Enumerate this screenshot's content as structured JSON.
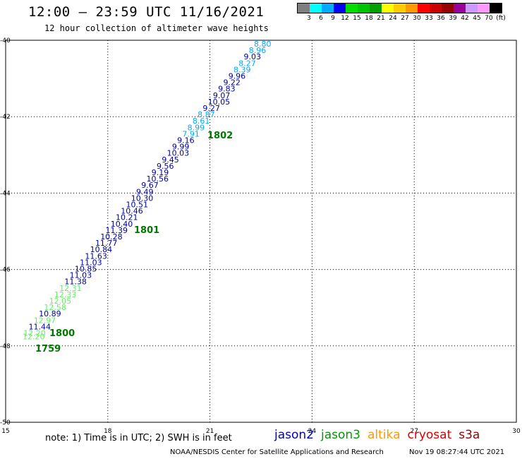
{
  "header": {
    "title": "12:00 – 23:59 UTC 11/16/2021",
    "subtitle": "12 hour collection of altimeter wave heights"
  },
  "legend": {
    "colors": [
      "#7f7f7f",
      "#00ffff",
      "#00aaff",
      "#0000ff",
      "#00e000",
      "#00c400",
      "#00a000",
      "#ffff00",
      "#ffcc00",
      "#ff9900",
      "#ff0000",
      "#cc0000",
      "#990000",
      "#990099",
      "#cc99ff",
      "#ff99ff",
      "#000000"
    ],
    "labels": [
      "3",
      "6",
      "9",
      "12",
      "15",
      "18",
      "21",
      "24",
      "27",
      "30",
      "33",
      "36",
      "39",
      "42",
      "45",
      "70",
      "(ft)"
    ]
  },
  "map": {
    "lon_range": [
      15,
      30
    ],
    "lat_range": [
      -50,
      -40
    ],
    "x_ticks": [
      "15",
      "18",
      "21",
      "24",
      "27",
      "30"
    ],
    "y_ticks": [
      "-40",
      "-42",
      "-44",
      "-46",
      "-48",
      "-50"
    ],
    "grid": "dotted"
  },
  "track": {
    "color_dark": "#0000a0",
    "color_light": "#00aaff",
    "color_green": "#66ee66",
    "points": [
      {
        "v": "8.80",
        "c": "#00aaff"
      },
      {
        "v": "8.96",
        "c": "#00aaff"
      },
      {
        "v": "9.03",
        "c": "#0000a0"
      },
      {
        "v": "8.27",
        "c": "#00aaff"
      },
      {
        "v": "8.39",
        "c": "#00aaff"
      },
      {
        "v": "9.96",
        "c": "#0000a0"
      },
      {
        "v": "9.22",
        "c": "#0000a0"
      },
      {
        "v": "9.83",
        "c": "#0000a0"
      },
      {
        "v": "9.07",
        "c": "#0000a0"
      },
      {
        "v": "10.05",
        "c": "#0000a0"
      },
      {
        "v": "9.27",
        "c": "#0000a0"
      },
      {
        "v": "8.87",
        "c": "#00aaff"
      },
      {
        "v": "8.61",
        "c": "#00aaff"
      },
      {
        "v": "8.99",
        "c": "#00aaff"
      },
      {
        "v": "7.91",
        "c": "#00aaff"
      },
      {
        "v": "9.16",
        "c": "#0000a0"
      },
      {
        "v": "9.99",
        "c": "#0000a0"
      },
      {
        "v": "10.03",
        "c": "#0000a0"
      },
      {
        "v": "9.45",
        "c": "#0000a0"
      },
      {
        "v": "9.56",
        "c": "#0000a0"
      },
      {
        "v": "9.19",
        "c": "#0000a0"
      },
      {
        "v": "10.56",
        "c": "#0000a0"
      },
      {
        "v": "9.67",
        "c": "#0000a0"
      },
      {
        "v": "9.49",
        "c": "#0000a0"
      },
      {
        "v": "10.30",
        "c": "#0000a0"
      },
      {
        "v": "10.51",
        "c": "#0000a0"
      },
      {
        "v": "10.46",
        "c": "#0000a0"
      },
      {
        "v": "10.21",
        "c": "#0000a0"
      },
      {
        "v": "10.40",
        "c": "#0000a0"
      },
      {
        "v": "11.39",
        "c": "#0000a0"
      },
      {
        "v": "10.28",
        "c": "#0000a0"
      },
      {
        "v": "11.77",
        "c": "#0000a0"
      },
      {
        "v": "10.84",
        "c": "#0000a0"
      },
      {
        "v": "11.63",
        "c": "#0000a0"
      },
      {
        "v": "11.03",
        "c": "#0000a0"
      },
      {
        "v": "10.85",
        "c": "#0000a0"
      },
      {
        "v": "11.03",
        "c": "#0000a0"
      },
      {
        "v": "11.38",
        "c": "#0000a0"
      },
      {
        "v": "12.31",
        "c": "#66ee66"
      },
      {
        "v": "12.33",
        "c": "#66ee66"
      },
      {
        "v": "12.05",
        "c": "#66ee66"
      },
      {
        "v": "12.58",
        "c": "#66ee66"
      },
      {
        "v": "10.89",
        "c": "#0000a0"
      },
      {
        "v": "12.97",
        "c": "#66ee66"
      },
      {
        "v": "11.44",
        "c": "#0000a0"
      },
      {
        "v": "12.20",
        "c": "#66ee66"
      },
      {
        "v": "12.20",
        "c": "#66ee66"
      }
    ],
    "time_labels": [
      {
        "t": "1802"
      },
      {
        "t": "1801"
      },
      {
        "t": "1800"
      },
      {
        "t": "1759"
      }
    ]
  },
  "footer": {
    "note": "note: 1) Time is in UTC; 2) SWH is in feet",
    "missions": [
      {
        "name": "jason2",
        "color": "#0000cc"
      },
      {
        "name": "jason3",
        "color": "#009900"
      },
      {
        "name": "altika",
        "color": "#ff9900"
      },
      {
        "name": "cryosat",
        "color": "#dd0000"
      },
      {
        "name": "s3a",
        "color": "#990000"
      }
    ],
    "credit": "NOAA/NESDIS Center for Satellite Applications and Research",
    "timestamp": "Nov 19 08:27:44 UTC 2021"
  }
}
